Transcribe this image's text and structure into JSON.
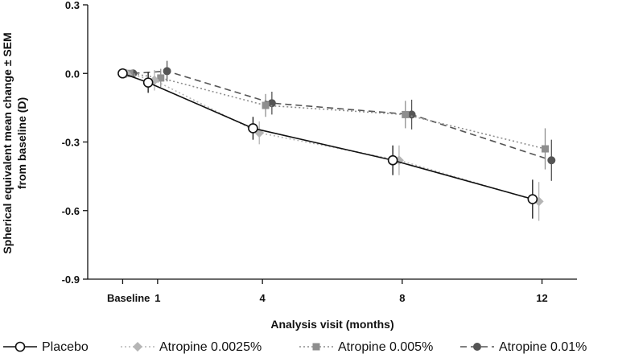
{
  "chart_data": {
    "type": "line",
    "xlabel": "Analysis visit (months)",
    "ylabel_line1": "Spherical equivalent mean change ± SEM",
    "ylabel_line2": "from baseline (D)",
    "ylim": [
      -0.9,
      0.3
    ],
    "y_ticks": [
      0.3,
      0.0,
      -0.3,
      -0.6,
      -0.9
    ],
    "y_tick_labels": [
      "0.3",
      "0.0",
      "-0.3",
      "-0.6",
      "-0.9"
    ],
    "x_ticks": [
      0,
      1,
      4,
      8,
      12
    ],
    "x_tick_labels": [
      "Baseline",
      "1",
      "4",
      "8",
      "12"
    ],
    "xlim": [
      -1,
      13
    ],
    "grid": false,
    "legend_position": "bottom",
    "series": [
      {
        "name": "Placebo",
        "color": "#111111",
        "line_style": "solid",
        "marker": "open-circle",
        "x_offset": -0.27,
        "x": [
          0,
          1,
          4,
          8,
          12
        ],
        "y": [
          0.0,
          -0.04,
          -0.24,
          -0.38,
          -0.55
        ],
        "sem": [
          0.0,
          0.045,
          0.05,
          0.065,
          0.085
        ]
      },
      {
        "name": "Atropine 0.0025%",
        "color": "#b5b5b5",
        "line_style": "dotted",
        "marker": "diamond",
        "x_offset": -0.09,
        "x": [
          0,
          1,
          4,
          8,
          12
        ],
        "y": [
          0.0,
          -0.03,
          -0.26,
          -0.38,
          -0.56
        ],
        "sem": [
          0.0,
          0.045,
          0.05,
          0.065,
          0.085
        ]
      },
      {
        "name": "Atropine 0.005%",
        "color": "#8e8e8e",
        "line_style": "dotted",
        "marker": "square",
        "x_offset": 0.09,
        "x": [
          0,
          1,
          4,
          8,
          12
        ],
        "y": [
          0.0,
          -0.02,
          -0.14,
          -0.18,
          -0.33
        ],
        "sem": [
          0.0,
          0.04,
          0.05,
          0.06,
          0.09
        ]
      },
      {
        "name": "Atropine 0.01%",
        "color": "#555555",
        "line_style": "dashed",
        "marker": "filled-circle",
        "x_offset": 0.27,
        "x": [
          0,
          1,
          4,
          8,
          12
        ],
        "y": [
          0.0,
          0.01,
          -0.13,
          -0.18,
          -0.38
        ],
        "sem": [
          0.0,
          0.045,
          0.05,
          0.065,
          0.09
        ]
      }
    ]
  }
}
